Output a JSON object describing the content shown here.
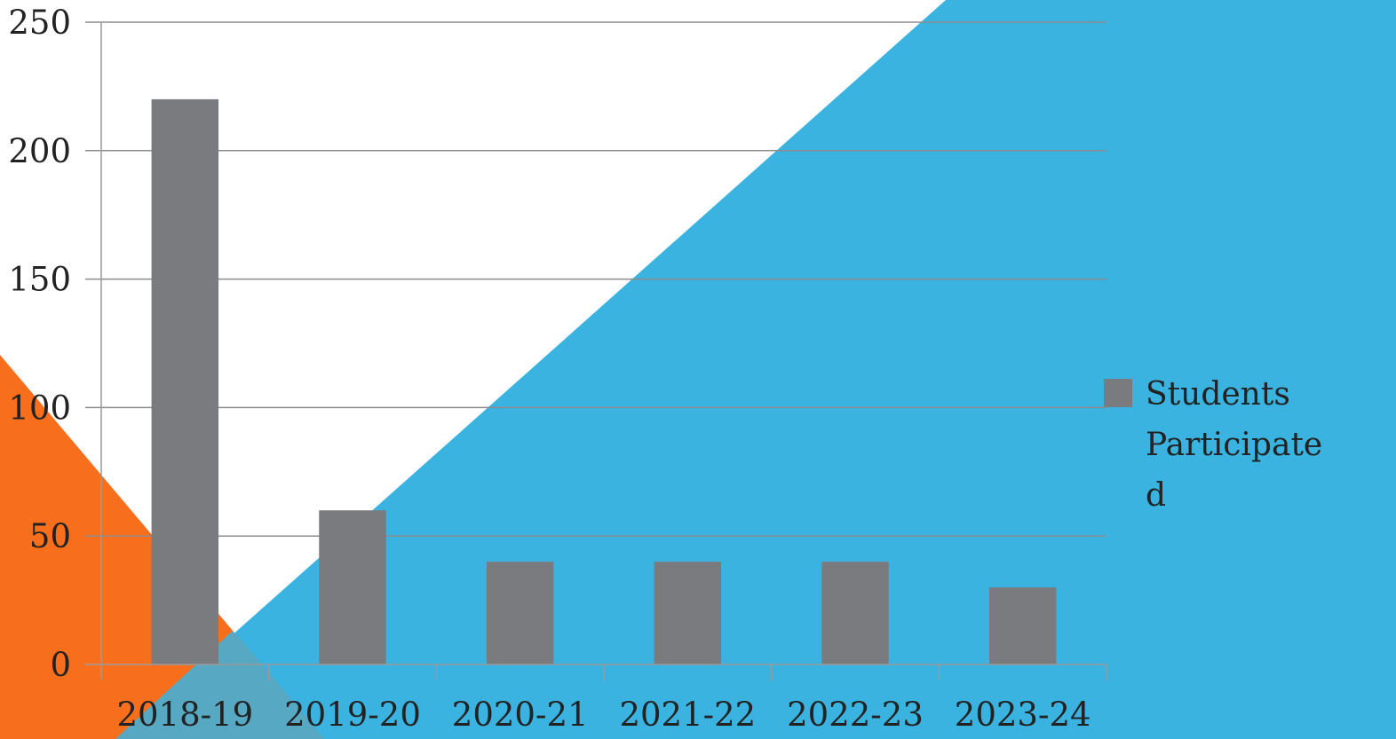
{
  "chart_data": {
    "type": "bar",
    "categories": [
      "2018-19",
      "2019-20",
      "2020-21",
      "2021-22",
      "2022-23",
      "2023-24"
    ],
    "series": [
      {
        "name": "Students Participated",
        "values": [
          220,
          60,
          40,
          40,
          40,
          30
        ]
      }
    ],
    "yticks": [
      "0",
      "50",
      "100",
      "150",
      "200",
      "250"
    ],
    "ylim": [
      0,
      250
    ],
    "grid": true,
    "legend_position": "right",
    "legend_lines": [
      "Students",
      "Participate",
      "d"
    ],
    "title": "",
    "xlabel": "",
    "ylabel": ""
  },
  "colors": {
    "bar": "#7a7b7f",
    "grid": "#8c8c8c",
    "axis": "#9a9a9a",
    "background": "#ffffff",
    "decor_blue": "#3ab3e0",
    "decor_orange": "#f76f1c"
  }
}
